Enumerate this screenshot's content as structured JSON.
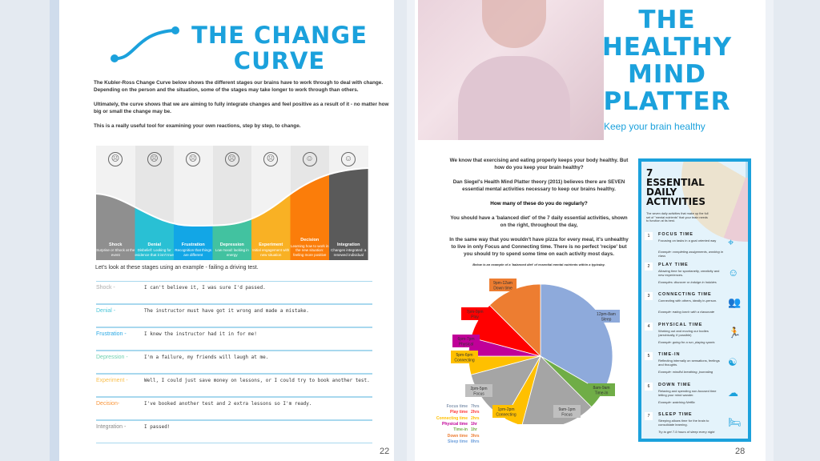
{
  "left_page": {
    "title_line1": "THE CHANGE",
    "title_line2": "CURVE",
    "paragraphs": [
      "The Kubler-Ross Change Curve below shows the different stages our brains have to work through to deal with change. Depending on the person and the situation, some of the stages may take longer to work through than others.",
      "Ultimately, the curve shows that we are aiming to fully integrate changes and feel positive as a result of it - no matter how big or small the change may be.",
      "This is a really useful tool for examining your own reactions, step by step, to change."
    ],
    "stages": [
      {
        "name": "Shock",
        "desc": "Surprise or Shock at the event",
        "color": "#8f8f8f",
        "icon": "☹"
      },
      {
        "name": "Denial",
        "desc": "Disbelief: Looking for evidence that it isn't true",
        "color": "#29c0d4",
        "icon": "☹"
      },
      {
        "name": "Frustration",
        "desc": "Recognition that things are different",
        "color": "#12a6e6",
        "icon": "☹"
      },
      {
        "name": "Depression",
        "desc": "Low mood: lacking in energy",
        "color": "#42c2a0",
        "icon": "☹"
      },
      {
        "name": "Experiment",
        "desc": "Initial engagement with new situation",
        "color": "#f9b124",
        "icon": "☹"
      },
      {
        "name": "Decision",
        "desc": "Learning how to work in the new situation: feeling more positive",
        "color": "#fb7d0a",
        "icon": "☺"
      },
      {
        "name": "Integration",
        "desc": "Changes integrated: a renewed individual",
        "color": "#5a5a5a",
        "icon": "☺"
      }
    ],
    "example_intro": "Let's look at these stages using an example - failing a driving test.",
    "examples": [
      {
        "label": "Shock -",
        "text": "I can't believe it, I was sure I'd passed.",
        "color": "#aaaaaa"
      },
      {
        "label": "Denial -",
        "text": "The instructor must have got it wrong and made a mistake.",
        "color": "#4cc6d8"
      },
      {
        "label": "Frustration -",
        "text": "I knew the instructor had it in for me!",
        "color": "#2aa8e4"
      },
      {
        "label": "Depression -",
        "text": "I'm a failure, my friends will laugh at me.",
        "color": "#6fd0b0"
      },
      {
        "label": "Experiment -",
        "text": "Well, I could just save money on lessons, or I could try to book another test.",
        "color": "#f9c050"
      },
      {
        "label": "Decision-",
        "text": "I've booked another test and 2 extra lessons so I'm ready.",
        "color": "#f9953a"
      },
      {
        "label": "Integration -",
        "text": "I passed!",
        "color": "#888888"
      }
    ],
    "page_number": "22"
  },
  "right_page": {
    "title_lines": [
      "THE",
      "HEALTHY",
      "MIND",
      "PLATTER"
    ],
    "subtitle": "Keep your brain healthy",
    "paragraphs": [
      "We know that exercising and eating properly keeps your body healthy. But how do you keep your brain healthy?",
      "Dan Siegel's Health Mind Platter theory (2011) believes there are SEVEN essential mental activities necessary to keep our brains healthy.",
      "How many of these do you do regularly?",
      "You should have a 'balanced diet' of the 7 daily essential activities, shown on the right, throughout the day,",
      "In the same way that you wouldn't have pizza for every meal, it's unhealthy to live in only Focus and Connecting time. There is no perfect 'recipe' but you should try to spend some time on each activity most days."
    ],
    "caption": "Below is an example of a 'balanced diet' of essential mental nutrients within a typicday.",
    "page_number": "28",
    "sidebar": {
      "title_lines": [
        "7",
        "ESSENTIAL",
        "DAILY",
        "ACTIVITIES"
      ],
      "intro": "The seven daily activities that make up the full set of \"mental nutrients\" that your brain needs to function at its best.",
      "activities": [
        {
          "num": "1",
          "title": "FOCUS TIME",
          "desc": "Focusing on tasks in a goal oriented way",
          "example": "Example: completing assignments, working in class",
          "icon": "⌖"
        },
        {
          "num": "2",
          "title": "PLAY TIME",
          "desc": "Allowing time for spontaneity, creativity and new experiences.",
          "example": "Examples: discover or indulge in hobbies",
          "icon": "☺"
        },
        {
          "num": "3",
          "title": "CONNECTING TIME",
          "desc": "Connecting with others, ideally in-person.",
          "example": "Example: eating lunch with a classmate",
          "icon": "👥"
        },
        {
          "num": "4",
          "title": "PHYSICAL TIME",
          "desc": "Working out and moving our bodies (aerobically, if possible)",
          "example": "Example: going for a run, playing sports",
          "icon": "🏃"
        },
        {
          "num": "5",
          "title": "TIME-IN",
          "desc": "Reflecting internally on sensations, feelings and thoughts.",
          "example": "Example: mindful breathing, journaling",
          "icon": "☯"
        },
        {
          "num": "6",
          "title": "DOWN TIME",
          "desc": "Relaxing and spending non-focused time letting your mind wander.",
          "example": "Example: watching Netflix",
          "icon": "☁"
        },
        {
          "num": "7",
          "title": "SLEEP TIME",
          "desc": "Sleeping allows time for the brain to consolidate learning.",
          "example": "Try to get 7-9 hours of sleep every night",
          "icon": "🛏"
        }
      ]
    }
  },
  "chart_data": {
    "type": "pie",
    "slices": [
      {
        "time": "12pm-8am",
        "activity": "Sleep",
        "hours": 8,
        "color": "#8eaadb"
      },
      {
        "time": "8am-9am",
        "activity": "Time-In",
        "hours": 1,
        "color": "#70ad47"
      },
      {
        "time": "9am-1pm",
        "activity": "Focus",
        "hours": 4,
        "color": "#a5a5a5"
      },
      {
        "time": "1pm-2pm",
        "activity": "Connecting",
        "hours": 1,
        "color": "#ffc000"
      },
      {
        "time": "2pm-5pm",
        "activity": "Focus",
        "hours": 3,
        "color": "#a5a5a5"
      },
      {
        "time": "5pm-6pm",
        "activity": "Connecting",
        "hours": 1,
        "color": "#ffc000"
      },
      {
        "time": "6pm-7pm",
        "activity": "Physical",
        "hours": 1,
        "color": "#c00099"
      },
      {
        "time": "7pm-9pm",
        "activity": "Play",
        "hours": 2,
        "color": "#ff0000"
      },
      {
        "time": "9pm-12am",
        "activity": "Down time",
        "hours": 3,
        "color": "#ed7d31"
      }
    ],
    "legend": [
      {
        "label": "Focus time",
        "value": "7hrs",
        "color": "#8497b0"
      },
      {
        "label": "Play time",
        "value": "2hrs",
        "color": "#ff3b3b"
      },
      {
        "label": "Connecting time",
        "value": "2hrs",
        "color": "#ffc000"
      },
      {
        "label": "Physical time",
        "value": "1hr",
        "color": "#c00099"
      },
      {
        "label": "Time-in",
        "value": "1hr",
        "color": "#70ad47"
      },
      {
        "label": "Down time",
        "value": "3hrs",
        "color": "#ed7d31"
      },
      {
        "label": "Sleep time",
        "value": "8hrs",
        "color": "#6fa0dc"
      }
    ]
  }
}
